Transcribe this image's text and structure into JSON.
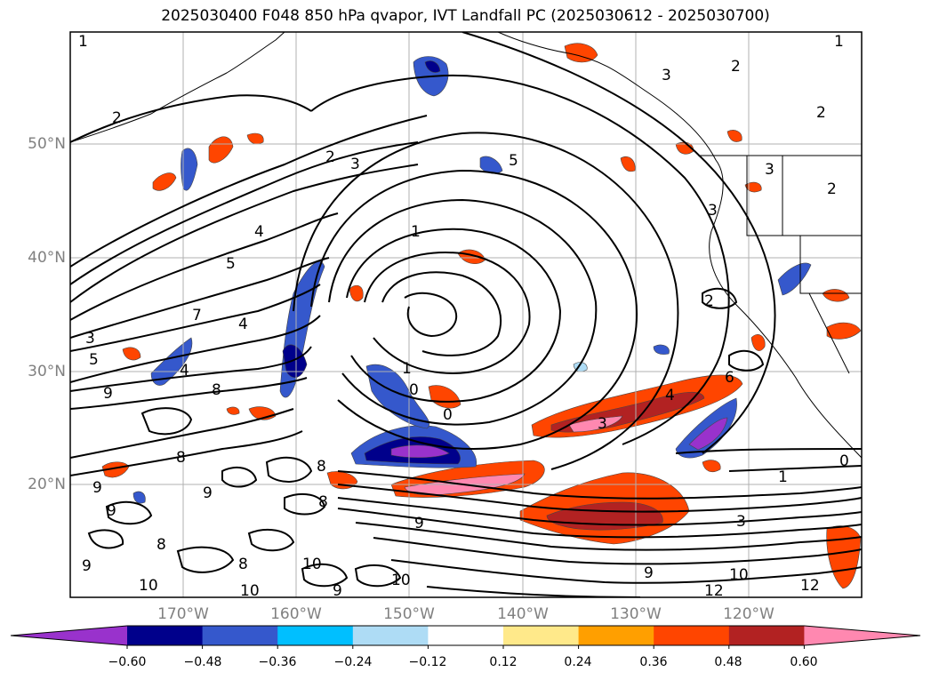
{
  "title": "2025030400 F048 850 hPa qvapor, IVT Landfall PC (2025030612 - 2025030700)",
  "map": {
    "lat_labels": [
      "50°N",
      "40°N",
      "30°N",
      "20°N"
    ],
    "lon_labels": [
      "170°W",
      "160°W",
      "150°W",
      "140°W",
      "130°W",
      "120°W"
    ]
  },
  "colorbar": {
    "tick_labels": [
      "−0.60",
      "−0.48",
      "−0.36",
      "−0.24",
      "−0.12",
      "0.12",
      "0.24",
      "0.36",
      "0.48",
      "0.60"
    ],
    "colors": [
      "#9932cc",
      "#00008b",
      "#3558cc",
      "#00bfff",
      "#aedcf5",
      "#ffffff",
      "#ffe98a",
      "#ff9f00",
      "#ff4500",
      "#b22222",
      "#ff88b0"
    ]
  },
  "contour_labels": [
    "1",
    "2",
    "3",
    "4",
    "5",
    "6",
    "7",
    "8",
    "9",
    "10",
    "12",
    "0"
  ]
}
